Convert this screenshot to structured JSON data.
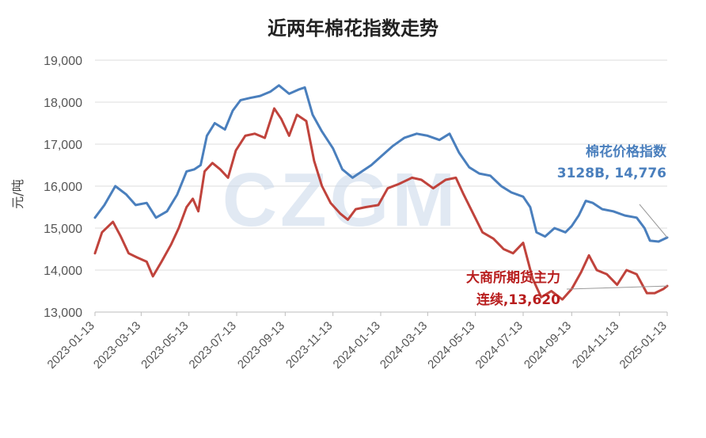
{
  "chart_data": {
    "type": "line",
    "title": "近两年棉花指数走势",
    "ylabel": "元/吨",
    "xlabel": "",
    "ylim": [
      13000,
      19000
    ],
    "yticks": [
      13000,
      14000,
      15000,
      16000,
      17000,
      18000,
      19000
    ],
    "ytick_labels": [
      "13,000",
      "14,000",
      "15,000",
      "16,000",
      "17,000",
      "18,000",
      "19,000"
    ],
    "xlim": [
      "2023-01-13",
      "2025-01-13"
    ],
    "xtick_labels": [
      "2023-01-13",
      "2023-03-13",
      "2023-05-13",
      "2023-07-13",
      "2023-09-13",
      "2023-11-13",
      "2024-01-13",
      "2024-03-13",
      "2024-05-13",
      "2024-07-13",
      "2024-09-13",
      "2024-11-13",
      "2025-01-13"
    ],
    "grid": "horizontal",
    "watermark": "CZGM",
    "series": [
      {
        "name": "棉花价格指数",
        "color": "#4a7fbd",
        "points": [
          [
            "2023-01-13",
            15250
          ],
          [
            "2023-01-25",
            15550
          ],
          [
            "2023-02-08",
            16000
          ],
          [
            "2023-02-22",
            15800
          ],
          [
            "2023-03-06",
            15550
          ],
          [
            "2023-03-20",
            15600
          ],
          [
            "2023-04-01",
            15250
          ],
          [
            "2023-04-15",
            15400
          ],
          [
            "2023-04-28",
            15800
          ],
          [
            "2023-05-10",
            16350
          ],
          [
            "2023-05-20",
            16400
          ],
          [
            "2023-05-28",
            16500
          ],
          [
            "2023-06-05",
            17200
          ],
          [
            "2023-06-15",
            17500
          ],
          [
            "2023-06-28",
            17350
          ],
          [
            "2023-07-08",
            17800
          ],
          [
            "2023-07-18",
            18050
          ],
          [
            "2023-07-30",
            18100
          ],
          [
            "2023-08-12",
            18150
          ],
          [
            "2023-08-25",
            18250
          ],
          [
            "2023-09-05",
            18400
          ],
          [
            "2023-09-18",
            18200
          ],
          [
            "2023-09-30",
            18300
          ],
          [
            "2023-10-08",
            18350
          ],
          [
            "2023-10-18",
            17700
          ],
          [
            "2023-10-30",
            17300
          ],
          [
            "2023-11-13",
            16900
          ],
          [
            "2023-11-25",
            16400
          ],
          [
            "2023-12-08",
            16200
          ],
          [
            "2023-12-20",
            16350
          ],
          [
            "2024-01-01",
            16500
          ],
          [
            "2024-01-13",
            16700
          ],
          [
            "2024-01-28",
            16950
          ],
          [
            "2024-02-12",
            17150
          ],
          [
            "2024-02-28",
            17250
          ],
          [
            "2024-03-13",
            17200
          ],
          [
            "2024-03-28",
            17100
          ],
          [
            "2024-04-10",
            17250
          ],
          [
            "2024-04-22",
            16800
          ],
          [
            "2024-05-05",
            16450
          ],
          [
            "2024-05-18",
            16300
          ],
          [
            "2024-06-01",
            16250
          ],
          [
            "2024-06-15",
            16000
          ],
          [
            "2024-06-28",
            15850
          ],
          [
            "2024-07-13",
            15750
          ],
          [
            "2024-07-22",
            15500
          ],
          [
            "2024-07-30",
            14900
          ],
          [
            "2024-08-10",
            14800
          ],
          [
            "2024-08-22",
            15000
          ],
          [
            "2024-09-05",
            14900
          ],
          [
            "2024-09-13",
            15050
          ],
          [
            "2024-09-22",
            15300
          ],
          [
            "2024-10-01",
            15650
          ],
          [
            "2024-10-10",
            15600
          ],
          [
            "2024-10-22",
            15450
          ],
          [
            "2024-11-05",
            15400
          ],
          [
            "2024-11-20",
            15300
          ],
          [
            "2024-12-05",
            15250
          ],
          [
            "2024-12-15",
            15000
          ],
          [
            "2024-12-22",
            14700
          ],
          [
            "2025-01-02",
            14680
          ],
          [
            "2025-01-13",
            14776
          ]
        ]
      },
      {
        "name": "大商所期货主力连续",
        "color": "#c0433c",
        "points": [
          [
            "2023-01-13",
            14400
          ],
          [
            "2023-01-22",
            14900
          ],
          [
            "2023-02-05",
            15150
          ],
          [
            "2023-02-15",
            14800
          ],
          [
            "2023-02-25",
            14400
          ],
          [
            "2023-03-08",
            14300
          ],
          [
            "2023-03-20",
            14200
          ],
          [
            "2023-03-28",
            13850
          ],
          [
            "2023-04-08",
            14200
          ],
          [
            "2023-04-20",
            14600
          ],
          [
            "2023-04-30",
            15000
          ],
          [
            "2023-05-10",
            15500
          ],
          [
            "2023-05-18",
            15700
          ],
          [
            "2023-05-25",
            15400
          ],
          [
            "2023-06-02",
            16350
          ],
          [
            "2023-06-12",
            16550
          ],
          [
            "2023-06-22",
            16400
          ],
          [
            "2023-07-02",
            16200
          ],
          [
            "2023-07-12",
            16850
          ],
          [
            "2023-07-24",
            17200
          ],
          [
            "2023-08-05",
            17250
          ],
          [
            "2023-08-18",
            17150
          ],
          [
            "2023-08-30",
            17850
          ],
          [
            "2023-09-08",
            17600
          ],
          [
            "2023-09-18",
            17200
          ],
          [
            "2023-09-28",
            17700
          ],
          [
            "2023-10-10",
            17550
          ],
          [
            "2023-10-20",
            16600
          ],
          [
            "2023-10-30",
            16000
          ],
          [
            "2023-11-10",
            15600
          ],
          [
            "2023-11-22",
            15350
          ],
          [
            "2023-12-02",
            15200
          ],
          [
            "2023-12-12",
            15450
          ],
          [
            "2023-12-25",
            15500
          ],
          [
            "2024-01-10",
            15550
          ],
          [
            "2024-01-22",
            15950
          ],
          [
            "2024-02-05",
            16050
          ],
          [
            "2024-02-22",
            16200
          ],
          [
            "2024-03-05",
            16150
          ],
          [
            "2024-03-20",
            15950
          ],
          [
            "2024-04-05",
            16150
          ],
          [
            "2024-04-18",
            16200
          ],
          [
            "2024-04-28",
            15800
          ],
          [
            "2024-05-10",
            15350
          ],
          [
            "2024-05-22",
            14900
          ],
          [
            "2024-06-05",
            14750
          ],
          [
            "2024-06-18",
            14500
          ],
          [
            "2024-06-30",
            14400
          ],
          [
            "2024-07-13",
            14650
          ],
          [
            "2024-07-25",
            13800
          ],
          [
            "2024-08-05",
            13350
          ],
          [
            "2024-08-18",
            13500
          ],
          [
            "2024-09-01",
            13300
          ],
          [
            "2024-09-13",
            13550
          ],
          [
            "2024-09-25",
            13950
          ],
          [
            "2024-10-05",
            14350
          ],
          [
            "2024-10-15",
            14000
          ],
          [
            "2024-10-28",
            13900
          ],
          [
            "2024-11-10",
            13650
          ],
          [
            "2024-11-22",
            14000
          ],
          [
            "2024-12-05",
            13900
          ],
          [
            "2024-12-18",
            13450
          ],
          [
            "2024-12-28",
            13450
          ],
          [
            "2025-01-08",
            13550
          ],
          [
            "2025-01-13",
            13620
          ]
        ]
      }
    ],
    "annotations": [
      {
        "series": "棉花价格指数",
        "lines": [
          "棉花价格指数",
          "3128B, 14,776"
        ],
        "color": "#4a7fbd"
      },
      {
        "series": "大商所期货主力连续",
        "lines": [
          "大商所期货主力",
          "连续,13,620"
        ],
        "color": "#b81e1e"
      }
    ]
  }
}
